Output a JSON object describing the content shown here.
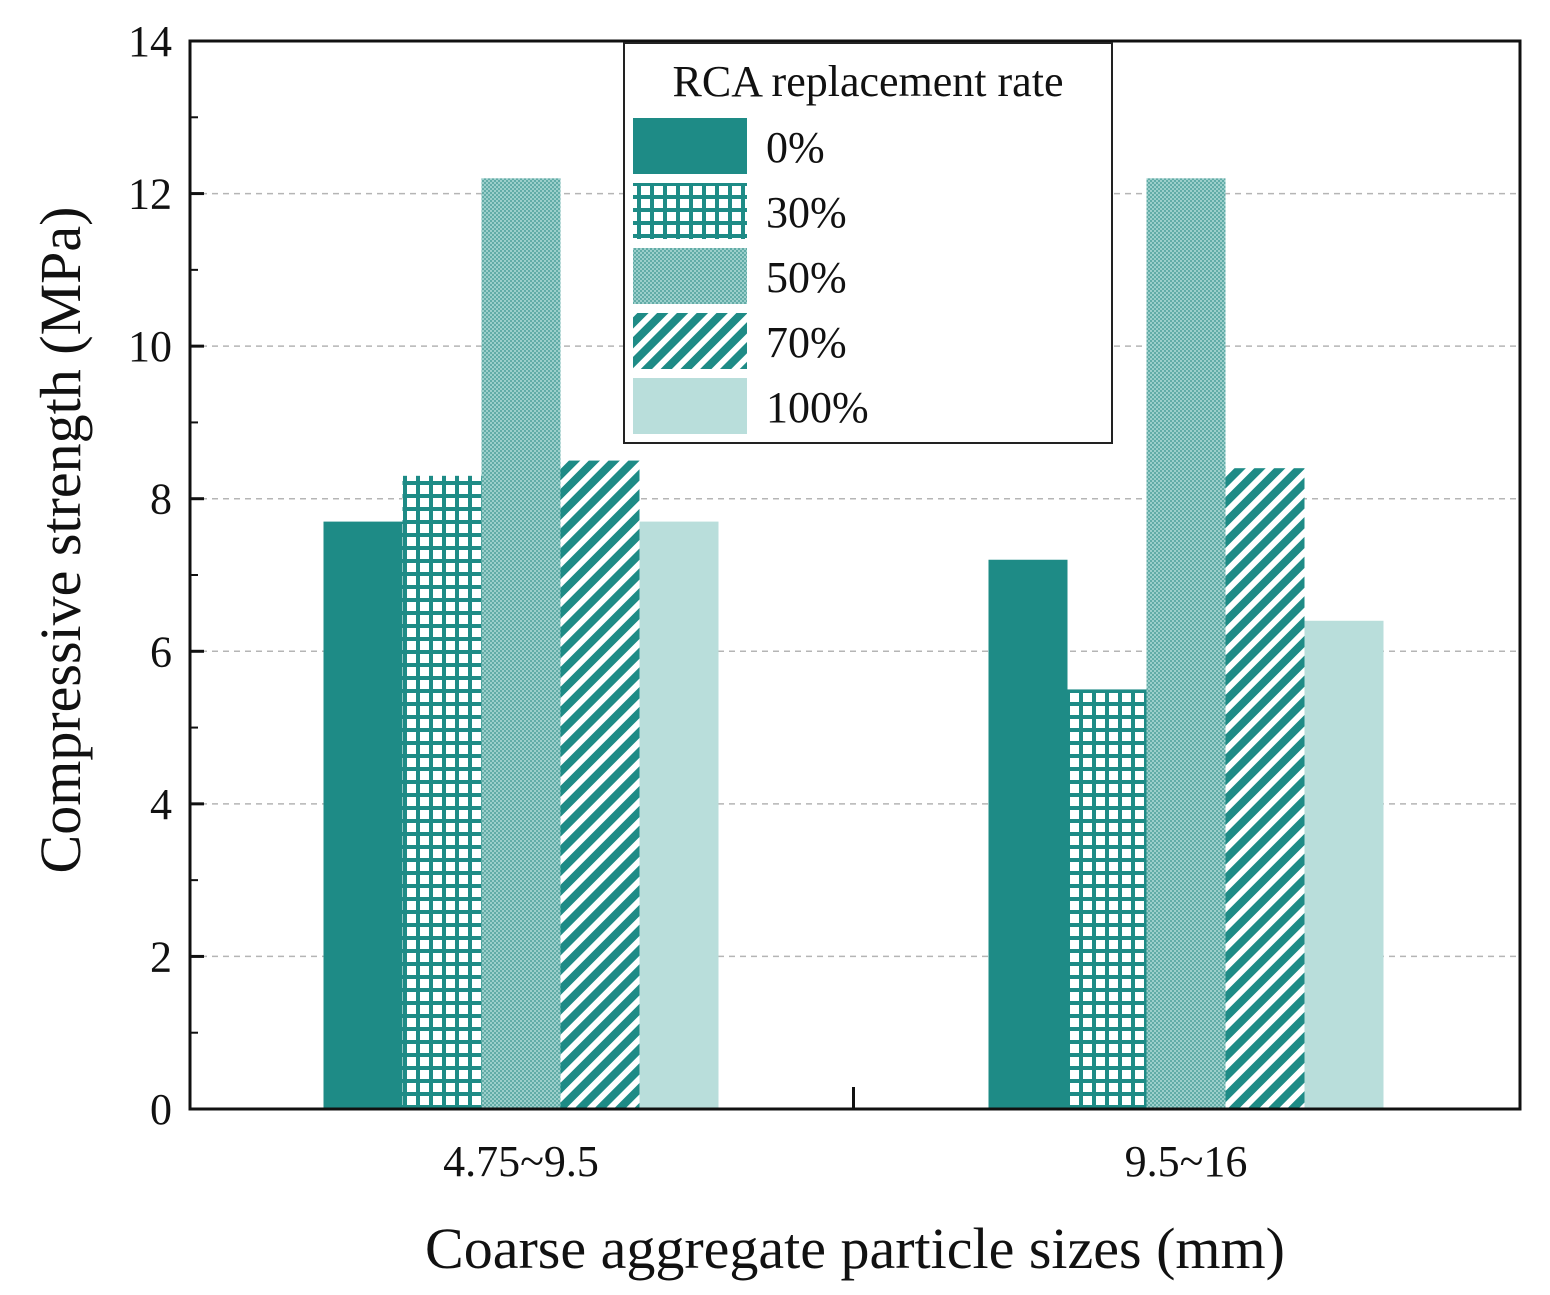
{
  "chart_data": {
    "type": "bar",
    "title": "",
    "xlabel": "Coarse aggregate particle sizes (mm)",
    "ylabel": "Compressive strength (MPa)",
    "ylim": [
      0,
      14
    ],
    "yticks": [
      "0",
      "2",
      "4",
      "6",
      "8",
      "10",
      "12",
      "14"
    ],
    "categories": [
      "4.75~9.5",
      "9.5~16"
    ],
    "grid": "horizontal dashed",
    "legend": {
      "title": "RCA replacement rate",
      "position": "top-center"
    },
    "series": [
      {
        "name": "0%",
        "values": [
          7.7,
          7.2
        ],
        "color": "#1e8b86",
        "pattern": "solid"
      },
      {
        "name": "30%",
        "values": [
          8.3,
          5.5
        ],
        "color": "#1e8b86",
        "pattern": "grid"
      },
      {
        "name": "50%",
        "values": [
          12.2,
          12.2
        ],
        "color": "#6bb3ae",
        "pattern": "fine-dots"
      },
      {
        "name": "70%",
        "values": [
          8.5,
          8.4
        ],
        "color": "#1e8b86",
        "pattern": "diagonal-lines"
      },
      {
        "name": "100%",
        "values": [
          7.7,
          6.4
        ],
        "color": "#b9dedb",
        "pattern": "solid"
      }
    ]
  }
}
